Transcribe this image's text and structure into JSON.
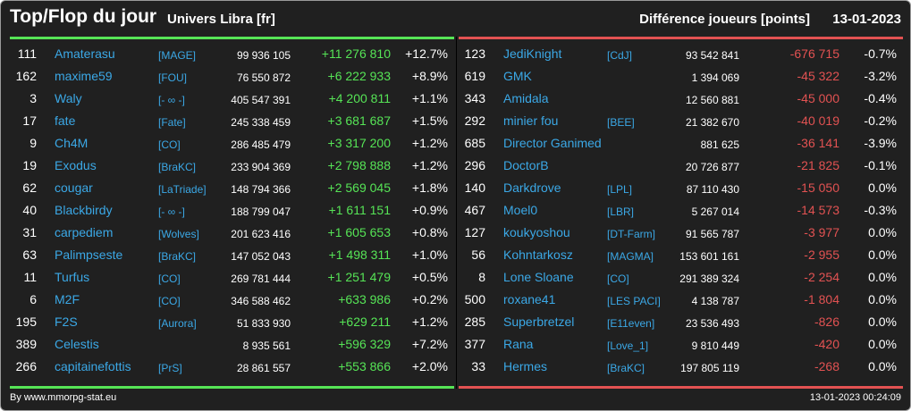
{
  "header": {
    "title": "Top/Flop du jour",
    "universe": "Univers Libra [fr]",
    "metric": "Différence joueurs [points]",
    "date": "13-01-2023"
  },
  "colors": {
    "background": "#202020",
    "positive": "#56e456",
    "negative": "#e25252",
    "link": "#3ba8e6"
  },
  "top": [
    {
      "rank": "111",
      "name": "Amaterasu",
      "alliance": "[MAGE]",
      "points": "99 936 105",
      "diff": "+11 276 810",
      "pct": "+12.7%"
    },
    {
      "rank": "162",
      "name": "maxime59",
      "alliance": "[FOU]",
      "points": "76 550 872",
      "diff": "+6 222 933",
      "pct": "+8.9%"
    },
    {
      "rank": "3",
      "name": "Waly",
      "alliance": "[- ∞ -]",
      "points": "405 547 391",
      "diff": "+4 200 811",
      "pct": "+1.1%"
    },
    {
      "rank": "17",
      "name": "fate",
      "alliance": "[Fate]",
      "points": "245 338 459",
      "diff": "+3 681 687",
      "pct": "+1.5%"
    },
    {
      "rank": "9",
      "name": "Ch4M",
      "alliance": "[CO]",
      "points": "286 485 479",
      "diff": "+3 317 200",
      "pct": "+1.2%"
    },
    {
      "rank": "19",
      "name": "Exodus",
      "alliance": "[BraKC]",
      "points": "233 904 369",
      "diff": "+2 798 888",
      "pct": "+1.2%"
    },
    {
      "rank": "62",
      "name": "cougar",
      "alliance": "[LaTriade]",
      "points": "148 794 366",
      "diff": "+2 569 045",
      "pct": "+1.8%"
    },
    {
      "rank": "40",
      "name": "Blackbirdy",
      "alliance": "[- ∞ -]",
      "points": "188 799 047",
      "diff": "+1 611 151",
      "pct": "+0.9%"
    },
    {
      "rank": "31",
      "name": "carpediem",
      "alliance": "[Wolves]",
      "points": "201 623 416",
      "diff": "+1 605 653",
      "pct": "+0.8%"
    },
    {
      "rank": "63",
      "name": "Palimpseste",
      "alliance": "[BraKC]",
      "points": "147 052 043",
      "diff": "+1 498 311",
      "pct": "+1.0%"
    },
    {
      "rank": "11",
      "name": "Turfus",
      "alliance": "[CO]",
      "points": "269 781 444",
      "diff": "+1 251 479",
      "pct": "+0.5%"
    },
    {
      "rank": "6",
      "name": "M2F",
      "alliance": "[CO]",
      "points": "346 588 462",
      "diff": "+633 986",
      "pct": "+0.2%"
    },
    {
      "rank": "195",
      "name": "F2S",
      "alliance": "[Aurora]",
      "points": "51 833 930",
      "diff": "+629 211",
      "pct": "+1.2%"
    },
    {
      "rank": "389",
      "name": "Celestis",
      "alliance": "",
      "points": "8 935 561",
      "diff": "+596 329",
      "pct": "+7.2%"
    },
    {
      "rank": "266",
      "name": "capitainefottis",
      "alliance": "[PrS]",
      "points": "28 861 557",
      "diff": "+553 866",
      "pct": "+2.0%"
    }
  ],
  "flop": [
    {
      "rank": "123",
      "name": "JediKnight",
      "alliance": "[CdJ]",
      "points": "93 542 841",
      "diff": "-676 715",
      "pct": "-0.7%"
    },
    {
      "rank": "619",
      "name": "GMK",
      "alliance": "",
      "points": "1 394 069",
      "diff": "-45 322",
      "pct": "-3.2%"
    },
    {
      "rank": "343",
      "name": "Amidala",
      "alliance": "",
      "points": "12 560 881",
      "diff": "-45 000",
      "pct": "-0.4%"
    },
    {
      "rank": "292",
      "name": "minier fou",
      "alliance": "[BEE]",
      "points": "21 382 670",
      "diff": "-40 019",
      "pct": "-0.2%"
    },
    {
      "rank": "685",
      "name": "Director Ganimed",
      "alliance": "",
      "points": "881 625",
      "diff": "-36 141",
      "pct": "-3.9%"
    },
    {
      "rank": "296",
      "name": "DoctorB",
      "alliance": "",
      "points": "20 726 877",
      "diff": "-21 825",
      "pct": "-0.1%"
    },
    {
      "rank": "140",
      "name": "Darkdrove",
      "alliance": "[LPL]",
      "points": "87 110 430",
      "diff": "-15 050",
      "pct": "0.0%"
    },
    {
      "rank": "467",
      "name": "Moel0",
      "alliance": "[LBR]",
      "points": "5 267 014",
      "diff": "-14 573",
      "pct": "-0.3%"
    },
    {
      "rank": "127",
      "name": "koukyoshou",
      "alliance": "[DT-Farm]",
      "points": "91 565 787",
      "diff": "-3 977",
      "pct": "0.0%"
    },
    {
      "rank": "56",
      "name": "Kohntarkosz",
      "alliance": "[MAGMA]",
      "points": "153 601 161",
      "diff": "-2 955",
      "pct": "0.0%"
    },
    {
      "rank": "8",
      "name": "Lone Sloane",
      "alliance": "[CO]",
      "points": "291 389 324",
      "diff": "-2 254",
      "pct": "0.0%"
    },
    {
      "rank": "500",
      "name": "roxane41",
      "alliance": "[LES PACI]",
      "points": "4 138 787",
      "diff": "-1 804",
      "pct": "0.0%"
    },
    {
      "rank": "285",
      "name": "Superbretzel",
      "alliance": "[E11even]",
      "points": "23 536 493",
      "diff": "-826",
      "pct": "0.0%"
    },
    {
      "rank": "377",
      "name": "Rana",
      "alliance": "[Love_1]",
      "points": "9 810 449",
      "diff": "-420",
      "pct": "0.0%"
    },
    {
      "rank": "33",
      "name": "Hermes",
      "alliance": "[BraKC]",
      "points": "197 805 119",
      "diff": "-268",
      "pct": "0.0%"
    }
  ],
  "footer": {
    "credit": "By www.mmorpg-stat.eu",
    "timestamp": "13-01-2023 00:24:09"
  }
}
